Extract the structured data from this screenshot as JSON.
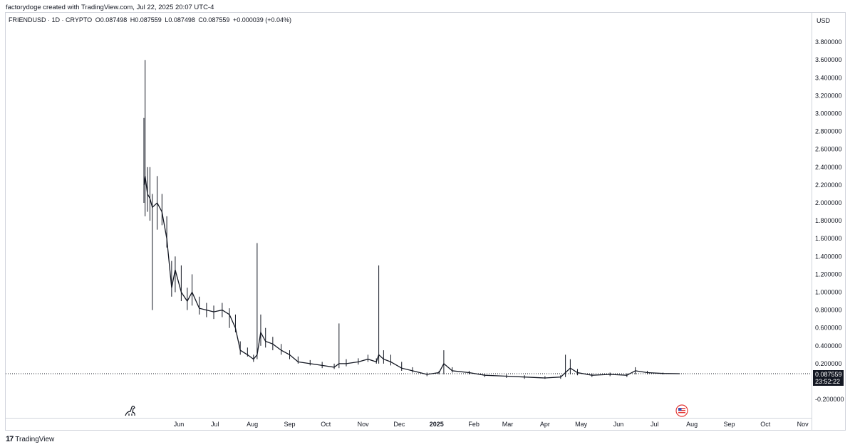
{
  "attribution": "factorydoge created with TradingView.com, Jul 22, 2025 20:07 UTC-4",
  "legend": {
    "symbol": "FRIENDUSD · 1D · CRYPTO",
    "open": "O0.087498",
    "high": "H0.087559",
    "low": "L0.087498",
    "close": "C0.087559",
    "change": "+0.000039 (+0.04%)"
  },
  "currency": "USD",
  "last_price": "0.087559",
  "countdown": "23:52:22",
  "footer_brand": "TradingView",
  "icons": [
    "tradingview-logo-icon",
    "dinosaur-icon",
    "us-flag-icon"
  ],
  "colors": {
    "candle": "#131722",
    "price_line": "#131722",
    "grid": "#d1d4dc"
  },
  "chart_data": {
    "type": "line",
    "title": "",
    "xlabel": "",
    "ylabel": "",
    "ylim": [
      -0.3,
      3.9
    ],
    "grid": false,
    "y_ticks": [
      "3.800000",
      "3.600000",
      "3.400000",
      "3.200000",
      "3.000000",
      "2.800000",
      "2.600000",
      "2.400000",
      "2.200000",
      "2.000000",
      "1.800000",
      "1.600000",
      "1.400000",
      "1.200000",
      "1.000000",
      "0.800000",
      "0.600000",
      "0.400000",
      "0.200000",
      "-0.200000"
    ],
    "x_ticks": [
      {
        "label": "Jun",
        "date": "2024-06-01"
      },
      {
        "label": "Jul",
        "date": "2024-07-01"
      },
      {
        "label": "Aug",
        "date": "2024-08-01"
      },
      {
        "label": "Sep",
        "date": "2024-09-01"
      },
      {
        "label": "Oct",
        "date": "2024-10-01"
      },
      {
        "label": "Nov",
        "date": "2024-11-01"
      },
      {
        "label": "Dec",
        "date": "2024-12-01"
      },
      {
        "label": "2025",
        "date": "2025-01-01",
        "bold": true
      },
      {
        "label": "Feb",
        "date": "2025-02-01"
      },
      {
        "label": "Mar",
        "date": "2025-03-01"
      },
      {
        "label": "Apr",
        "date": "2025-04-01"
      },
      {
        "label": "May",
        "date": "2025-05-01"
      },
      {
        "label": "Jun",
        "date": "2025-06-01"
      },
      {
        "label": "Jul",
        "date": "2025-07-01"
      },
      {
        "label": "Aug",
        "date": "2025-08-01"
      },
      {
        "label": "Sep",
        "date": "2025-09-01"
      },
      {
        "label": "Oct",
        "date": "2025-10-01"
      },
      {
        "label": "Nov",
        "date": "2025-11-01"
      }
    ],
    "series": [
      {
        "values": [
          {
            "date": "2024-05-03",
            "close": 2.2,
            "high": 2.95,
            "low": 2.0
          },
          {
            "date": "2024-05-04",
            "close": 2.3,
            "high": 3.6,
            "low": 1.85
          },
          {
            "date": "2024-05-06",
            "close": 2.1,
            "high": 2.4,
            "low": 1.9
          },
          {
            "date": "2024-05-08",
            "close": 2.05,
            "high": 2.4,
            "low": 1.8
          },
          {
            "date": "2024-05-10",
            "close": 1.95,
            "high": 2.1,
            "low": 0.8
          },
          {
            "date": "2024-05-14",
            "close": 2.0,
            "high": 2.3,
            "low": 1.7
          },
          {
            "date": "2024-05-18",
            "close": 1.9,
            "high": 2.1,
            "low": 1.75
          },
          {
            "date": "2024-05-22",
            "close": 1.6,
            "high": 1.85,
            "low": 1.5
          },
          {
            "date": "2024-05-26",
            "close": 1.05,
            "high": 1.35,
            "low": 0.95
          },
          {
            "date": "2024-05-29",
            "close": 1.25,
            "high": 1.4,
            "low": 1.0
          },
          {
            "date": "2024-06-03",
            "close": 1.0,
            "high": 1.3,
            "low": 0.9
          },
          {
            "date": "2024-06-08",
            "close": 0.9,
            "high": 1.05,
            "low": 0.8
          },
          {
            "date": "2024-06-12",
            "close": 1.0,
            "high": 1.2,
            "low": 0.85
          },
          {
            "date": "2024-06-18",
            "close": 0.82,
            "high": 0.95,
            "low": 0.75
          },
          {
            "date": "2024-06-24",
            "close": 0.8,
            "high": 0.88,
            "low": 0.72
          },
          {
            "date": "2024-06-30",
            "close": 0.78,
            "high": 0.85,
            "low": 0.7
          },
          {
            "date": "2024-07-07",
            "close": 0.8,
            "high": 0.88,
            "low": 0.72
          },
          {
            "date": "2024-07-13",
            "close": 0.75,
            "high": 0.82,
            "low": 0.6
          },
          {
            "date": "2024-07-18",
            "close": 0.6,
            "high": 0.75,
            "low": 0.55
          },
          {
            "date": "2024-07-22",
            "close": 0.35,
            "high": 0.45,
            "low": 0.3
          },
          {
            "date": "2024-07-28",
            "close": 0.3,
            "high": 0.38,
            "low": 0.28
          },
          {
            "date": "2024-08-02",
            "close": 0.25,
            "high": 0.3,
            "low": 0.22
          },
          {
            "date": "2024-08-05",
            "close": 0.3,
            "high": 1.55,
            "low": 0.25
          },
          {
            "date": "2024-08-08",
            "close": 0.55,
            "high": 0.75,
            "low": 0.4
          },
          {
            "date": "2024-08-12",
            "close": 0.45,
            "high": 0.6,
            "low": 0.38
          },
          {
            "date": "2024-08-18",
            "close": 0.42,
            "high": 0.5,
            "low": 0.35
          },
          {
            "date": "2024-08-25",
            "close": 0.35,
            "high": 0.42,
            "low": 0.3
          },
          {
            "date": "2024-09-01",
            "close": 0.3,
            "high": 0.35,
            "low": 0.25
          },
          {
            "date": "2024-09-08",
            "close": 0.22,
            "high": 0.28,
            "low": 0.2
          },
          {
            "date": "2024-09-18",
            "close": 0.2,
            "high": 0.24,
            "low": 0.18
          },
          {
            "date": "2024-09-28",
            "close": 0.18,
            "high": 0.22,
            "low": 0.15
          },
          {
            "date": "2024-10-08",
            "close": 0.16,
            "high": 0.2,
            "low": 0.14
          },
          {
            "date": "2024-10-12",
            "close": 0.2,
            "high": 0.65,
            "low": 0.15
          },
          {
            "date": "2024-10-18",
            "close": 0.2,
            "high": 0.25,
            "low": 0.17
          },
          {
            "date": "2024-10-28",
            "close": 0.22,
            "high": 0.26,
            "low": 0.19
          },
          {
            "date": "2024-11-05",
            "close": 0.25,
            "high": 0.3,
            "low": 0.22
          },
          {
            "date": "2024-11-12",
            "close": 0.22,
            "high": 0.26,
            "low": 0.2
          },
          {
            "date": "2024-11-14",
            "close": 0.3,
            "high": 1.3,
            "low": 0.2
          },
          {
            "date": "2024-11-18",
            "close": 0.25,
            "high": 0.35,
            "low": 0.2
          },
          {
            "date": "2024-11-24",
            "close": 0.22,
            "high": 0.3,
            "low": 0.18
          },
          {
            "date": "2024-12-03",
            "close": 0.15,
            "high": 0.22,
            "low": 0.12
          },
          {
            "date": "2024-12-12",
            "close": 0.12,
            "high": 0.16,
            "low": 0.1
          },
          {
            "date": "2024-12-24",
            "close": 0.08,
            "high": 0.1,
            "low": 0.06
          },
          {
            "date": "2025-01-03",
            "close": 0.1,
            "high": 0.12,
            "low": 0.08
          },
          {
            "date": "2025-01-07",
            "close": 0.2,
            "high": 0.35,
            "low": 0.08
          },
          {
            "date": "2025-01-14",
            "close": 0.12,
            "high": 0.16,
            "low": 0.1
          },
          {
            "date": "2025-01-28",
            "close": 0.1,
            "high": 0.12,
            "low": 0.08
          },
          {
            "date": "2025-02-10",
            "close": 0.07,
            "high": 0.09,
            "low": 0.05
          },
          {
            "date": "2025-02-28",
            "close": 0.06,
            "high": 0.08,
            "low": 0.04
          },
          {
            "date": "2025-03-15",
            "close": 0.05,
            "high": 0.07,
            "low": 0.03
          },
          {
            "date": "2025-04-01",
            "close": 0.04,
            "high": 0.06,
            "low": 0.03
          },
          {
            "date": "2025-04-14",
            "close": 0.05,
            "high": 0.07,
            "low": 0.03
          },
          {
            "date": "2025-04-18",
            "close": 0.1,
            "high": 0.3,
            "low": 0.05
          },
          {
            "date": "2025-04-22",
            "close": 0.15,
            "high": 0.25,
            "low": 0.08
          },
          {
            "date": "2025-04-28",
            "close": 0.1,
            "high": 0.14,
            "low": 0.07
          },
          {
            "date": "2025-05-10",
            "close": 0.07,
            "high": 0.09,
            "low": 0.05
          },
          {
            "date": "2025-05-25",
            "close": 0.08,
            "high": 0.1,
            "low": 0.06
          },
          {
            "date": "2025-06-08",
            "close": 0.07,
            "high": 0.09,
            "low": 0.05
          },
          {
            "date": "2025-06-15",
            "close": 0.12,
            "high": 0.16,
            "low": 0.08
          },
          {
            "date": "2025-06-25",
            "close": 0.1,
            "high": 0.12,
            "low": 0.08
          },
          {
            "date": "2025-07-08",
            "close": 0.09,
            "high": 0.1,
            "low": 0.08
          },
          {
            "date": "2025-07-22",
            "close": 0.087559,
            "high": 0.087559,
            "low": 0.087498
          }
        ]
      }
    ]
  }
}
